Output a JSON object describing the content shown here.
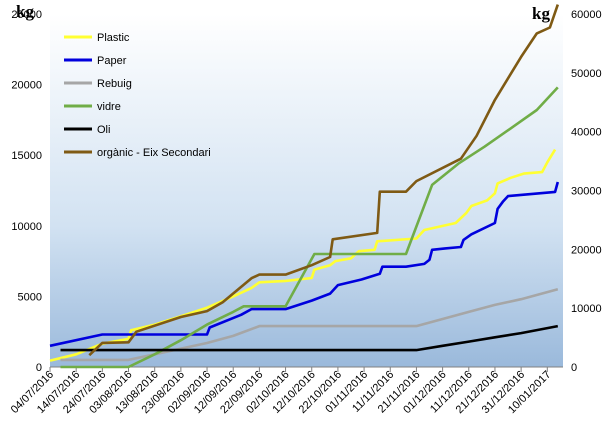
{
  "chart_data": {
    "type": "line",
    "title": "",
    "left_unit": "kg",
    "right_unit": "kg",
    "y_left": {
      "min": 0,
      "max": 25000,
      "ticks": [
        "0",
        "5000",
        "10000",
        "15000",
        "20000",
        "25000"
      ]
    },
    "y_right": {
      "min": 0,
      "max": 60000,
      "ticks": [
        "0",
        "10000",
        "20000",
        "30000",
        "40000",
        "50000",
        "60000"
      ]
    },
    "x_range": [
      "2016-07-04",
      "2017-01-16"
    ],
    "x_ticks": [
      "04/07/2016",
      "14/07/2016",
      "24/07/2016",
      "03/08/2016",
      "13/08/2016",
      "23/08/2016",
      "02/09/2016",
      "12/09/2016",
      "22/09/2016",
      "02/10/2016",
      "12/10/2016",
      "22/10/2016",
      "01/11/2016",
      "11/11/2016",
      "21/11/2016",
      "01/12/2016",
      "11/12/2016",
      "21/12/2016",
      "31/12/2016",
      "10/01/2017"
    ],
    "grid": false,
    "legend_position": "top-left",
    "series": [
      {
        "name": "Plastic",
        "color": "#FFFF33",
        "axis": "left",
        "points": [
          [
            "2016-07-04",
            450
          ],
          [
            "2016-07-14",
            900
          ],
          [
            "2016-07-24",
            1650
          ],
          [
            "2016-08-03",
            2000
          ],
          [
            "2016-08-04",
            2600
          ],
          [
            "2016-08-13",
            3000
          ],
          [
            "2016-08-23",
            3600
          ],
          [
            "2016-09-02",
            4200
          ],
          [
            "2016-09-12",
            5000
          ],
          [
            "2016-09-19",
            5600
          ],
          [
            "2016-09-22",
            6000
          ],
          [
            "2016-10-02",
            6100
          ],
          [
            "2016-10-12",
            6300
          ],
          [
            "2016-10-13",
            6900
          ],
          [
            "2016-10-19",
            7200
          ],
          [
            "2016-10-21",
            7500
          ],
          [
            "2016-10-27",
            7700
          ],
          [
            "2016-10-30",
            8200
          ],
          [
            "2016-11-05",
            8300
          ],
          [
            "2016-11-06",
            8900
          ],
          [
            "2016-11-21",
            9100
          ],
          [
            "2016-11-24",
            9700
          ],
          [
            "2016-12-06",
            10200
          ],
          [
            "2016-12-10",
            10900
          ],
          [
            "2016-12-12",
            11400
          ],
          [
            "2016-12-18",
            11800
          ],
          [
            "2016-12-21",
            12300
          ],
          [
            "2016-12-22",
            13000
          ],
          [
            "2016-12-27",
            13400
          ],
          [
            "2017-01-01",
            13700
          ],
          [
            "2017-01-08",
            13800
          ],
          [
            "2017-01-10",
            14500
          ],
          [
            "2017-01-13",
            15400
          ]
        ]
      },
      {
        "name": "Paper",
        "color": "#0000DD",
        "axis": "left",
        "points": [
          [
            "2016-07-04",
            1500
          ],
          [
            "2016-07-24",
            2300
          ],
          [
            "2016-08-23",
            2300
          ],
          [
            "2016-09-02",
            2300
          ],
          [
            "2016-09-03",
            2800
          ],
          [
            "2016-09-15",
            3700
          ],
          [
            "2016-09-19",
            4100
          ],
          [
            "2016-10-02",
            4100
          ],
          [
            "2016-10-12",
            4700
          ],
          [
            "2016-10-19",
            5200
          ],
          [
            "2016-10-22",
            5800
          ],
          [
            "2016-10-31",
            6200
          ],
          [
            "2016-11-07",
            6600
          ],
          [
            "2016-11-08",
            7100
          ],
          [
            "2016-11-17",
            7100
          ],
          [
            "2016-11-24",
            7300
          ],
          [
            "2016-11-26",
            7600
          ],
          [
            "2016-11-27",
            8300
          ],
          [
            "2016-12-02",
            8400
          ],
          [
            "2016-12-08",
            8500
          ],
          [
            "2016-12-09",
            9000
          ],
          [
            "2016-12-12",
            9400
          ],
          [
            "2016-12-21",
            10200
          ],
          [
            "2016-12-22",
            11200
          ],
          [
            "2016-12-24",
            11700
          ],
          [
            "2016-12-26",
            12100
          ],
          [
            "2017-01-13",
            12400
          ],
          [
            "2017-01-14",
            13100
          ]
        ]
      },
      {
        "name": "Rebuig",
        "color": "#A6A6A6",
        "axis": "left",
        "points": [
          [
            "2016-07-08",
            500
          ],
          [
            "2016-08-03",
            500
          ],
          [
            "2016-08-13",
            900
          ],
          [
            "2016-08-23",
            1300
          ],
          [
            "2016-09-02",
            1700
          ],
          [
            "2016-09-12",
            2200
          ],
          [
            "2016-09-22",
            2900
          ],
          [
            "2016-10-02",
            2900
          ],
          [
            "2016-11-21",
            2900
          ],
          [
            "2016-12-01",
            3400
          ],
          [
            "2016-12-11",
            3900
          ],
          [
            "2016-12-21",
            4400
          ],
          [
            "2016-12-31",
            4800
          ],
          [
            "2017-01-14",
            5500
          ]
        ]
      },
      {
        "name": "vidre",
        "color": "#70AD47",
        "axis": "left",
        "points": [
          [
            "2016-07-08",
            0
          ],
          [
            "2016-08-03",
            0
          ],
          [
            "2016-08-13",
            900
          ],
          [
            "2016-08-23",
            1900
          ],
          [
            "2016-09-02",
            3000
          ],
          [
            "2016-09-12",
            3900
          ],
          [
            "2016-09-16",
            4300
          ],
          [
            "2016-10-02",
            4300
          ],
          [
            "2016-10-13",
            8000
          ],
          [
            "2016-10-20",
            8000
          ],
          [
            "2016-11-17",
            8000
          ],
          [
            "2016-11-27",
            12900
          ],
          [
            "2016-12-07",
            14400
          ],
          [
            "2016-12-17",
            15600
          ],
          [
            "2016-12-27",
            16900
          ],
          [
            "2017-01-06",
            18200
          ],
          [
            "2017-01-14",
            19800
          ]
        ]
      },
      {
        "name": "Oli",
        "color": "#000000",
        "axis": "left",
        "points": [
          [
            "2016-07-08",
            1200
          ],
          [
            "2016-11-21",
            1200
          ],
          [
            "2016-12-01",
            1500
          ],
          [
            "2016-12-11",
            1800
          ],
          [
            "2016-12-21",
            2100
          ],
          [
            "2016-12-31",
            2400
          ],
          [
            "2017-01-14",
            2900
          ]
        ]
      },
      {
        "name": "orgànic - Eix Secondari",
        "color": "#7F5A14",
        "axis": "right",
        "points": [
          [
            "2016-07-19",
            2000
          ],
          [
            "2016-07-24",
            4100
          ],
          [
            "2016-08-03",
            4200
          ],
          [
            "2016-08-06",
            6000
          ],
          [
            "2016-08-23",
            8500
          ],
          [
            "2016-09-02",
            9500
          ],
          [
            "2016-09-08",
            11000
          ],
          [
            "2016-09-19",
            15100
          ],
          [
            "2016-09-22",
            15700
          ],
          [
            "2016-10-02",
            15700
          ],
          [
            "2016-10-12",
            17300
          ],
          [
            "2016-10-19",
            18700
          ],
          [
            "2016-10-20",
            21700
          ],
          [
            "2016-11-06",
            22800
          ],
          [
            "2016-11-07",
            29800
          ],
          [
            "2016-11-17",
            29800
          ],
          [
            "2016-11-21",
            31600
          ],
          [
            "2016-12-08",
            35400
          ],
          [
            "2016-12-14",
            39300
          ],
          [
            "2016-12-21",
            45400
          ],
          [
            "2016-12-31",
            52700
          ],
          [
            "2017-01-06",
            56700
          ],
          [
            "2017-01-11",
            57700
          ],
          [
            "2017-01-14",
            61600
          ]
        ]
      }
    ]
  }
}
